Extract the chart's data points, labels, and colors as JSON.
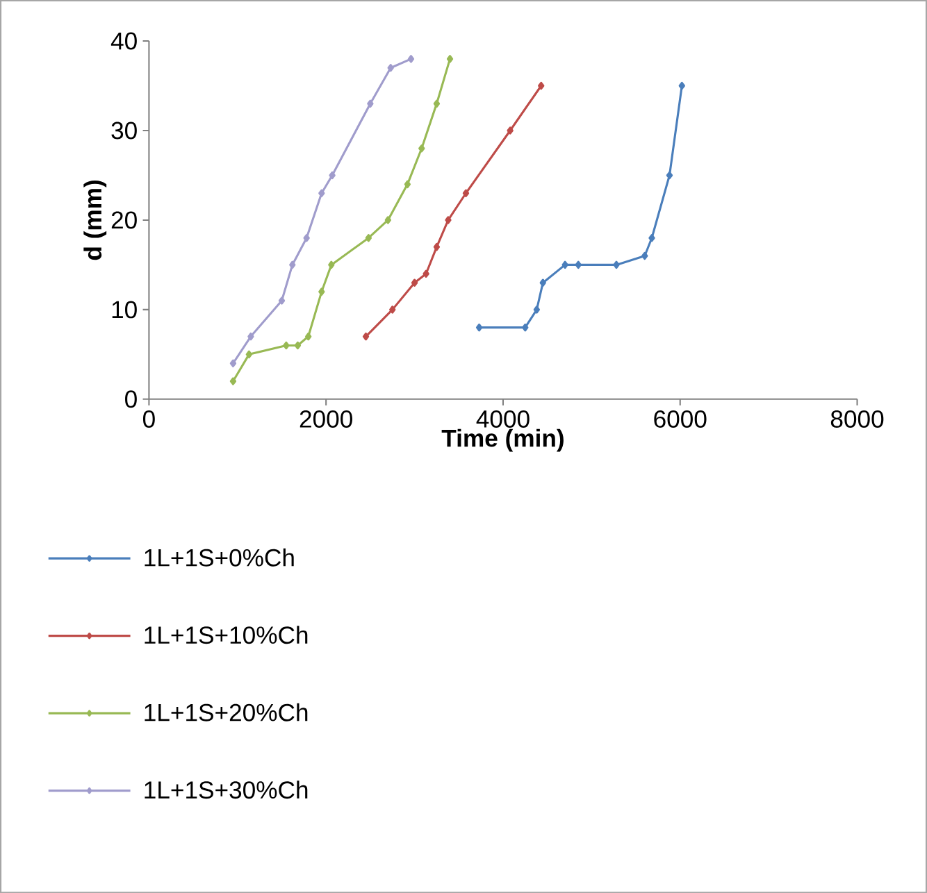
{
  "chart_data": {
    "type": "line",
    "xlabel": "Time (min)",
    "ylabel": "d (mm)",
    "xlim": [
      0,
      8000
    ],
    "ylim": [
      0,
      40
    ],
    "xticks": [
      0,
      2000,
      4000,
      6000,
      8000
    ],
    "yticks": [
      0,
      10,
      20,
      30,
      40
    ],
    "grid": false,
    "legend": "bottom",
    "marker": "diamond",
    "line_style": "solid",
    "series": [
      {
        "name": "1L+1S+0%Ch",
        "color": "#4a7ebb",
        "x": [
          3730,
          4250,
          4380,
          4450,
          4700,
          4850,
          5280,
          5600,
          5680,
          5880,
          6020
        ],
        "values": [
          8,
          8,
          10,
          13,
          15,
          15,
          15,
          16,
          18,
          25,
          35
        ]
      },
      {
        "name": "1L+1S+10%Ch",
        "color": "#be4b48",
        "x": [
          2450,
          2750,
          3000,
          3130,
          3250,
          3380,
          3580,
          4080,
          4430
        ],
        "values": [
          7,
          10,
          13,
          14,
          17,
          20,
          23,
          30,
          35
        ]
      },
      {
        "name": "1L+1S+20%Ch",
        "color": "#98b954",
        "x": [
          950,
          1130,
          1550,
          1680,
          1800,
          1950,
          2060,
          2480,
          2700,
          2920,
          3080,
          3250,
          3400
        ],
        "values": [
          2,
          5,
          6,
          6,
          7,
          12,
          15,
          18,
          20,
          24,
          28,
          33,
          38
        ]
      },
      {
        "name": "1L+1S+30%Ch",
        "color": "#a09ccc",
        "x": [
          950,
          1150,
          1500,
          1620,
          1780,
          1950,
          2070,
          2500,
          2730,
          2960
        ],
        "values": [
          4,
          7,
          11,
          15,
          18,
          23,
          25,
          33,
          37,
          38
        ]
      }
    ]
  }
}
